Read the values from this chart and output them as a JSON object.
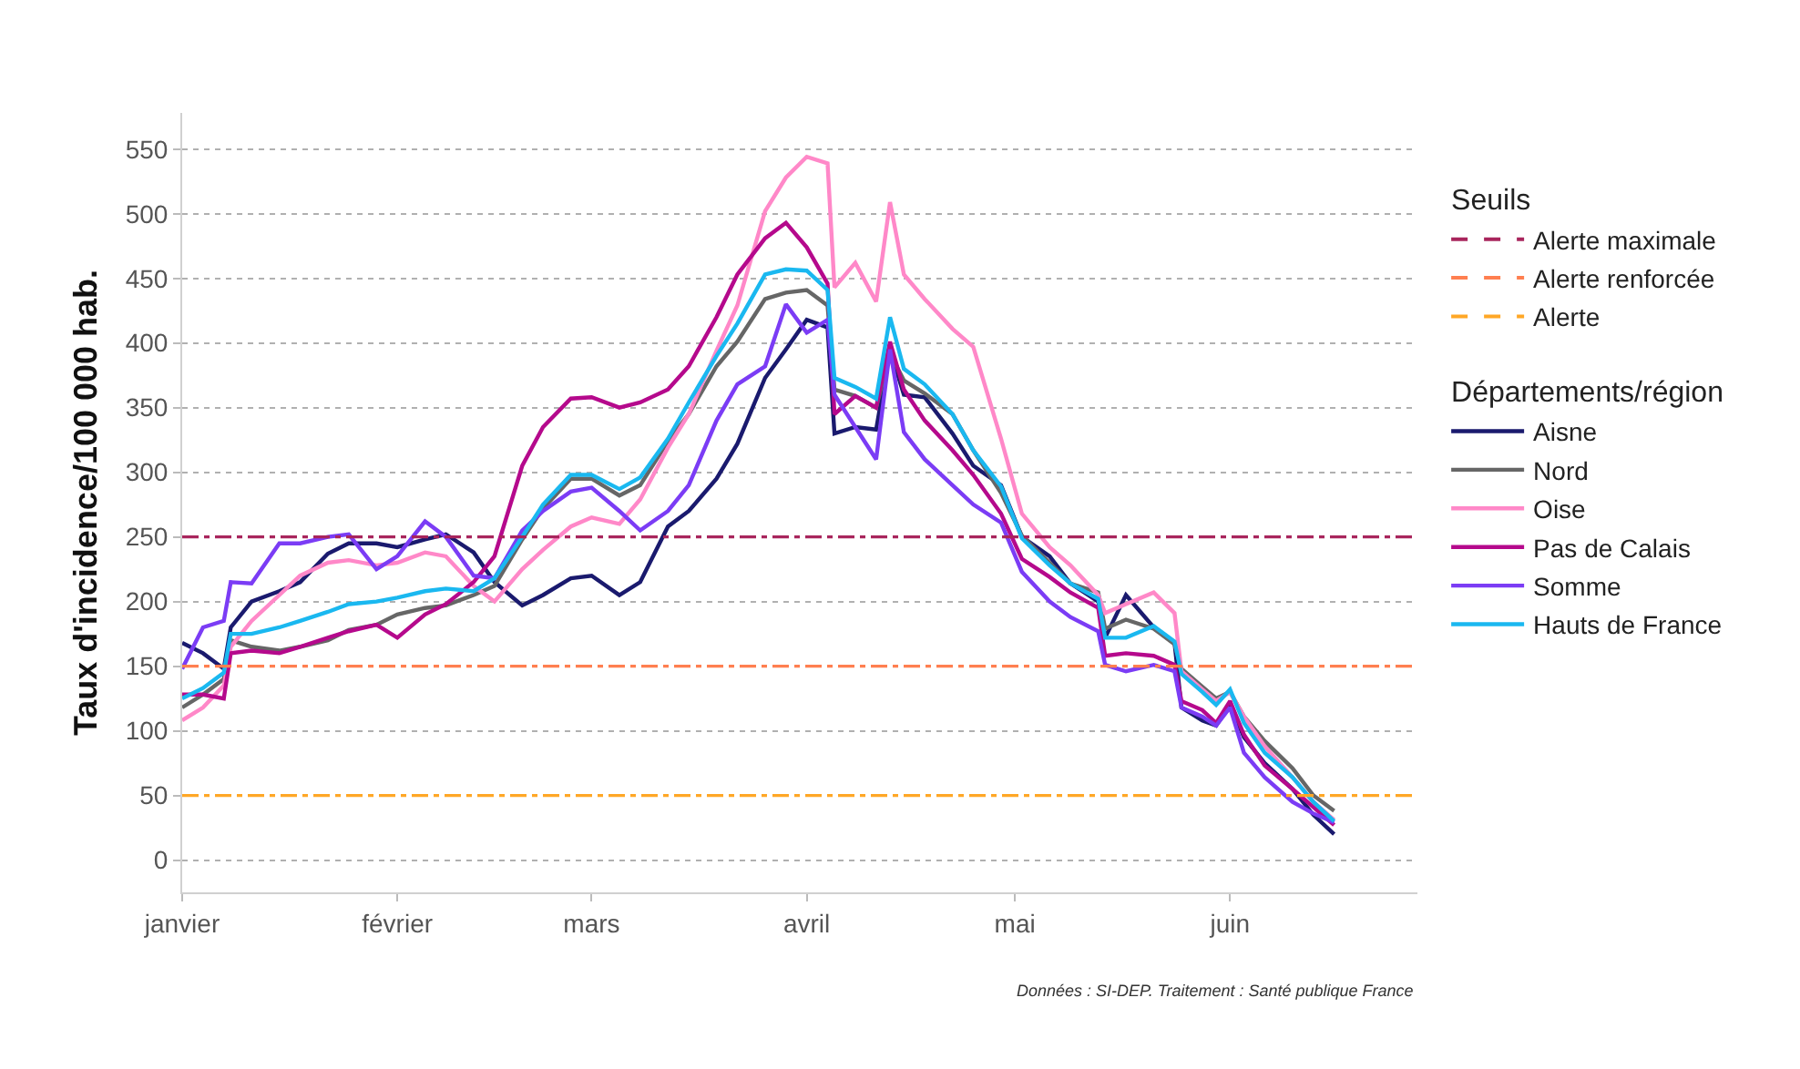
{
  "chart_data": {
    "type": "line",
    "ylabel": "Taux d'incidence/100 000 hab.",
    "legend_title": "Départements/région",
    "annotations": [
      "Seuils",
      "Données : SI-DEP. Traitement : Santé publique France"
    ],
    "x": [
      "--01-01",
      "--01-04",
      "--01-07",
      "--01-08",
      "--01-11",
      "--01-15",
      "--01-18",
      "--01-22",
      "--01-25",
      "--01-29",
      "--02-01",
      "--02-05",
      "--02-08",
      "--02-12",
      "--02-15",
      "--02-19",
      "--02-22",
      "--02-26",
      "--03-01",
      "--03-05",
      "--03-08",
      "--03-12",
      "--03-15",
      "--03-19",
      "--03-22",
      "--03-26",
      "--03-29",
      "--04-01",
      "--04-04",
      "--04-05",
      "--04-08",
      "--04-11",
      "--04-13",
      "--04-15",
      "--04-18",
      "--04-22",
      "--04-25",
      "--04-29",
      "--05-02",
      "--05-06",
      "--05-09",
      "--05-13",
      "--05-14",
      "--05-17",
      "--05-21",
      "--05-24",
      "--05-25",
      "--05-28",
      "--05-30",
      "--06-01",
      "--06-03",
      "--06-06",
      "--06-10",
      "--06-13",
      "--06-16"
    ],
    "series": [
      {
        "name": "Aisne",
        "color": "#1a1a6e",
        "values": [
          168,
          160,
          148,
          180,
          200,
          208,
          215,
          237,
          245,
          245,
          242,
          248,
          252,
          238,
          215,
          197,
          205,
          218,
          220,
          205,
          215,
          258,
          270,
          295,
          322,
          373,
          395,
          418,
          412,
          330,
          335,
          333,
          395,
          360,
          358,
          330,
          305,
          290,
          250,
          235,
          214,
          200,
          172,
          205,
          180,
          168,
          118,
          108,
          104,
          120,
          95,
          75,
          55,
          35,
          20
        ]
      },
      {
        "name": "Nord",
        "color": "#666666",
        "values": [
          118,
          128,
          140,
          170,
          165,
          162,
          165,
          170,
          178,
          182,
          190,
          195,
          197,
          205,
          212,
          248,
          272,
          295,
          295,
          282,
          290,
          324,
          345,
          382,
          401,
          434,
          439,
          441,
          429,
          364,
          359,
          350,
          392,
          371,
          361,
          345,
          317,
          284,
          251,
          230,
          214,
          207,
          179,
          186,
          179,
          167,
          148,
          134,
          125,
          130,
          111,
          92,
          71,
          50,
          38
        ]
      },
      {
        "name": "Oise",
        "color": "#ff88c8",
        "values": [
          108,
          118,
          135,
          165,
          185,
          205,
          220,
          230,
          232,
          228,
          230,
          238,
          235,
          212,
          200,
          225,
          240,
          258,
          265,
          260,
          279,
          319,
          345,
          394,
          429,
          502,
          528,
          544,
          539,
          443,
          462,
          432,
          509,
          453,
          434,
          411,
          397,
          326,
          268,
          242,
          228,
          205,
          191,
          198,
          207,
          191,
          146,
          132,
          123,
          130,
          111,
          88,
          64,
          45,
          31
        ]
      },
      {
        "name": "Pas de Calais",
        "color": "#b5098c",
        "values": [
          128,
          128,
          125,
          160,
          162,
          160,
          165,
          172,
          177,
          182,
          172,
          190,
          198,
          215,
          235,
          305,
          335,
          357,
          358,
          350,
          354,
          364,
          382,
          420,
          453,
          481,
          493,
          474,
          446,
          345,
          359,
          350,
          401,
          364,
          340,
          317,
          298,
          268,
          233,
          219,
          207,
          195,
          158,
          160,
          158,
          151,
          123,
          116,
          106,
          123,
          97,
          73,
          55,
          41,
          27
        ]
      },
      {
        "name": "Somme",
        "color": "#7b3cf5",
        "values": [
          148,
          180,
          185,
          215,
          214,
          245,
          245,
          250,
          252,
          225,
          235,
          262,
          250,
          220,
          218,
          255,
          270,
          285,
          288,
          270,
          255,
          270,
          290,
          340,
          368,
          382,
          430,
          408,
          418,
          360,
          335,
          310,
          395,
          331,
          310,
          290,
          275,
          261,
          223,
          200,
          188,
          177,
          151,
          146,
          151,
          146,
          118,
          111,
          104,
          118,
          83,
          64,
          45,
          36,
          29
        ]
      },
      {
        "name": "Hauts de France",
        "color": "#1ab8f0",
        "values": [
          125,
          133,
          145,
          175,
          175,
          180,
          185,
          192,
          198,
          200,
          203,
          208,
          210,
          208,
          218,
          250,
          275,
          298,
          298,
          287,
          296,
          326,
          354,
          390,
          415,
          453,
          457,
          456,
          441,
          373,
          366,
          357,
          420,
          380,
          368,
          345,
          317,
          289,
          249,
          228,
          214,
          202,
          172,
          172,
          181,
          169,
          144,
          130,
          120,
          132,
          106,
          83,
          64,
          45,
          30
        ]
      }
    ],
    "ref_lines": [
      {
        "axis": "y",
        "value": 250,
        "label": "Alerte maximale",
        "color": "#a8255c",
        "line_style": "dashed"
      },
      {
        "axis": "y",
        "value": 150,
        "label": "Alerte renforcée",
        "color": "#ff7f50",
        "line_style": "dashed"
      },
      {
        "axis": "y",
        "value": 50,
        "label": "Alerte",
        "color": "#ffa726",
        "line_style": "dashed"
      }
    ],
    "xlim": [
      "--01-01",
      "--06-28"
    ],
    "xticks": [
      {
        "value": "--01-01",
        "label": "janvier"
      },
      {
        "value": "--02-01",
        "label": "février"
      },
      {
        "value": "--03-01",
        "label": "mars"
      },
      {
        "value": "--04-01",
        "label": "avril"
      },
      {
        "value": "--05-01",
        "label": "mai"
      },
      {
        "value": "--06-01",
        "label": "juin"
      }
    ],
    "ylim": [
      -25,
      578
    ],
    "yticks": [
      0,
      50,
      100,
      150,
      200,
      250,
      300,
      350,
      400,
      450,
      500,
      550
    ],
    "grid": "y",
    "legend": "right",
    "line_style": "solid",
    "marker": "none"
  }
}
